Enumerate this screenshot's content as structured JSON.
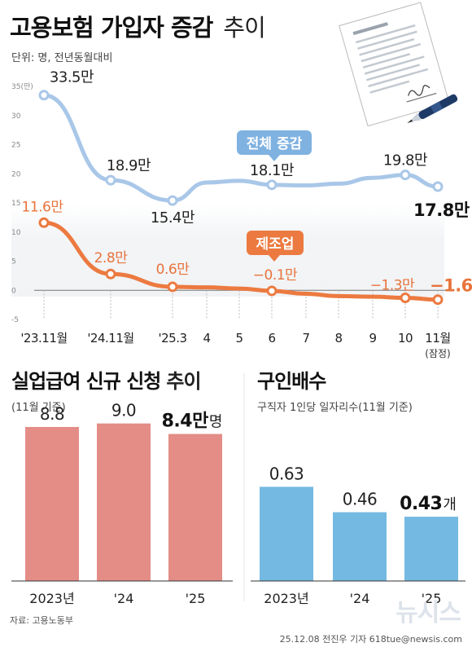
{
  "header": {
    "title_bold": "고용보험 가입자 증감",
    "title_light": "추이",
    "unit": "단위: 명, 전년동월대비"
  },
  "colors": {
    "blue_line": "#a9c7e8",
    "orange_line": "#ec7a40",
    "blue_tag": "#7fb2e0",
    "orange_tag": "#ec7a40",
    "bar_red": "#e38d86",
    "bar_blue": "#74b9e2"
  },
  "chart_data": [
    {
      "type": "line",
      "title": "고용보험 가입자 증감 추이",
      "ylabel": "단위: 명, 전년동월대비",
      "ylim": [
        -5,
        35
      ],
      "y_ticks": [
        "35(만)",
        "30",
        "25",
        "20",
        "15",
        "10",
        "5",
        "0",
        "-5"
      ],
      "x": [
        "'23.11월",
        "'24.11월",
        "'25.3",
        "4",
        "5",
        "6",
        "7",
        "8",
        "9",
        "10",
        "11월"
      ],
      "x_note": "(잠정)",
      "grid": false,
      "series": [
        {
          "name": "전체 증감",
          "values": [
            33.5,
            18.9,
            15.4,
            18.5,
            18.8,
            18.1,
            18.0,
            18.3,
            19.3,
            19.8,
            17.8
          ],
          "labels": {
            "0": "33.5만",
            "1": "18.9만",
            "2": "15.4만",
            "5": "18.1만",
            "9": "19.8만",
            "10": "17.8만"
          }
        },
        {
          "name": "제조업",
          "values": [
            11.6,
            2.8,
            0.6,
            0.5,
            0.3,
            -0.1,
            -0.6,
            -1.0,
            -1.1,
            -1.3,
            -1.6
          ],
          "labels": {
            "0": "11.6만",
            "1": "2.8만",
            "2": "0.6만",
            "5": "−0.1만",
            "9": "−1.3만",
            "10": "−1.6만"
          }
        }
      ]
    },
    {
      "type": "bar",
      "title": "실업급여 신규 신청 추이",
      "subtitle": "(11월 기준)",
      "categories": [
        "2023년",
        "'24",
        "'25"
      ],
      "values": [
        8.8,
        9.0,
        8.4
      ],
      "value_labels": [
        "8.8",
        "9.0",
        "8.4만"
      ],
      "last_unit": "명",
      "ylim": [
        0,
        10.8
      ]
    },
    {
      "type": "bar",
      "title": "구인배수",
      "subtitle": "구직자 1인당 일자리수(11월 기준)",
      "categories": [
        "2023년",
        "'24",
        "'25"
      ],
      "values": [
        0.63,
        0.46,
        0.43
      ],
      "value_labels": [
        "0.63",
        "0.46",
        "0.43"
      ],
      "last_unit": "개",
      "ylim": [
        0,
        1.09
      ]
    }
  ],
  "footer": {
    "source": "자료: 고용노동부",
    "credit": "25.12.08 전진우 기자 618tue@newsis.com",
    "logo": "뉴시스"
  }
}
